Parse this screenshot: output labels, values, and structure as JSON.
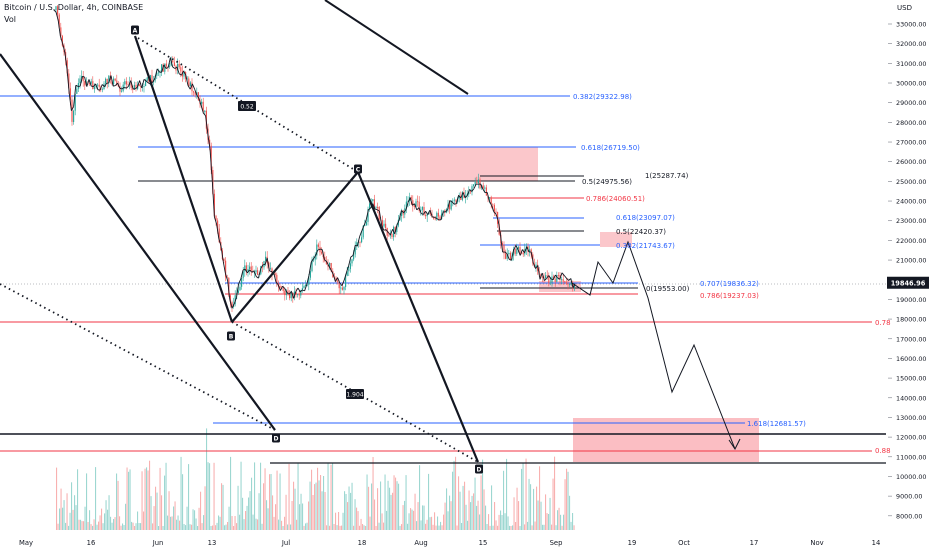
{
  "header": {
    "symbol": "Bitcoin / U.S. Dollar, 4h, COINBASE",
    "indicator": "Vol"
  },
  "axis": {
    "currency": "USD",
    "price_ticks": [
      33000,
      32000,
      31000,
      30000,
      29000,
      28000,
      27000,
      26000,
      25000,
      24000,
      23000,
      22000,
      21000,
      20000,
      19000,
      18000,
      17000,
      16000,
      15000,
      14000,
      13000,
      12000,
      11000,
      10000,
      9000,
      8000
    ],
    "price_tick_labels": [
      "33000.00",
      "32000.00",
      "31000.00",
      "30000.00",
      "29000.00",
      "28000.00",
      "27000.00",
      "26000.00",
      "25000.00",
      "24000.00",
      "23000.00",
      "22000.00",
      "21000.00",
      "20000.00",
      "19000.00",
      "18000.00",
      "17000.00",
      "16000.00",
      "15000.00",
      "14000.00",
      "13000.00",
      "12000.00",
      "11000.00",
      "10000.00",
      "9000.00",
      "8000.00"
    ],
    "current_price_label": "19846.96",
    "time_labels": [
      "May",
      "16",
      "Jun",
      "13",
      "Jul",
      "18",
      "Aug",
      "15",
      "Sep",
      "19",
      "Oct",
      "17",
      "Nov",
      "14"
    ]
  },
  "chart_data": {
    "type": "candlestick",
    "title": "Bitcoin / U.S. Dollar, 4h, COINBASE",
    "ylim": [
      7000,
      34000
    ],
    "current_price": 19846.96,
    "fib_levels": [
      {
        "label": "0.382(29322.98)",
        "value": 29322.98,
        "color": "#2962ff"
      },
      {
        "label": "0.618(26719.50)",
        "value": 26719.5,
        "color": "#2962ff"
      },
      {
        "label": "1(25287.74)",
        "value": 25287.74,
        "color": "#131722"
      },
      {
        "label": "0.5(24975.56)",
        "value": 24975.56,
        "color": "#131722"
      },
      {
        "label": "0.786(24060.51)",
        "value": 24060.51,
        "color": "#f23645"
      },
      {
        "label": "0.618(23097.07)",
        "value": 23097.07,
        "color": "#2962ff"
      },
      {
        "label": "0.5(22420.37)",
        "value": 22420.37,
        "color": "#131722"
      },
      {
        "label": "0.382(21743.67)",
        "value": 21743.67,
        "color": "#2962ff"
      },
      {
        "label": "0.707(19836.32)",
        "value": 19836.32,
        "color": "#2962ff"
      },
      {
        "label": "0(19553.00)",
        "value": 19553.0,
        "color": "#131722"
      },
      {
        "label": "0.786(19237.03)",
        "value": 19237.03,
        "color": "#f23645"
      },
      {
        "label": "1.618(12681.57)",
        "value": 12681.57,
        "color": "#2962ff"
      }
    ],
    "edge_labels": [
      "0.78",
      "0.88"
    ],
    "wave_labels": [
      "A",
      "B",
      "C",
      "D",
      "D"
    ],
    "ratio_labels": [
      "0.52",
      "1.904"
    ]
  }
}
